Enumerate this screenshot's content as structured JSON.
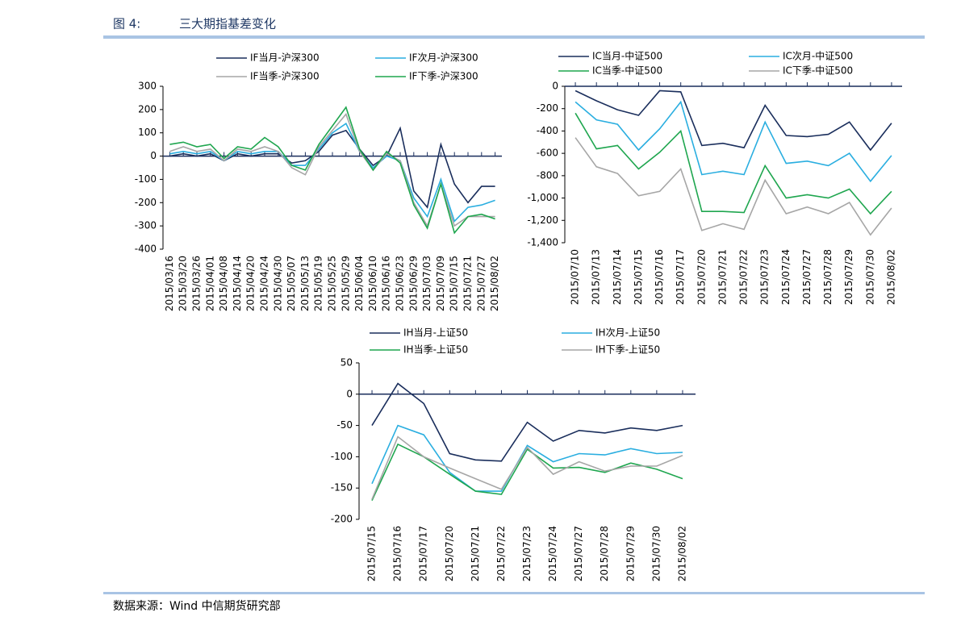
{
  "header": {
    "label": "图 4:",
    "title": "三大期指基差变化"
  },
  "source": "数据来源：Wind 中信期货研究部",
  "chart_data": [
    {
      "type": "line",
      "categories": [
        "2015/03/16",
        "2015/03/20",
        "2015/03/26",
        "2015/04/01",
        "2015/04/08",
        "2015/04/14",
        "2015/04/20",
        "2015/04/24",
        "2015/04/30",
        "2015/05/07",
        "2015/05/13",
        "2015/05/19",
        "2015/05/25",
        "2015/05/29",
        "2015/06/04",
        "2015/06/10",
        "2015/06/16",
        "2015/06/23",
        "2015/06/29",
        "2015/07/03",
        "2015/07/09",
        "2015/07/15",
        "2015/07/21",
        "2015/07/27",
        "2015/08/02"
      ],
      "series": [
        {
          "name": "IF当月-沪深300",
          "color": "#1a2e5c",
          "values": [
            0,
            10,
            0,
            10,
            -20,
            10,
            0,
            10,
            10,
            -30,
            -20,
            20,
            90,
            110,
            30,
            -40,
            0,
            120,
            -150,
            -220,
            50,
            -120,
            -200,
            -130,
            -130
          ]
        },
        {
          "name": "IF次月-沪深300",
          "color": "#2aaee0",
          "values": [
            10,
            20,
            10,
            20,
            -20,
            20,
            10,
            20,
            20,
            -40,
            -40,
            30,
            100,
            140,
            20,
            -50,
            0,
            -20,
            -180,
            -260,
            -100,
            -280,
            -220,
            -210,
            -190
          ]
        },
        {
          "name": "IF当季-沪深300",
          "color": "#a6a6a6",
          "values": [
            20,
            40,
            20,
            30,
            -20,
            30,
            20,
            40,
            20,
            -50,
            -80,
            40,
            110,
            180,
            20,
            -60,
            10,
            -20,
            -200,
            -300,
            -120,
            -300,
            -260,
            -260,
            -260
          ]
        },
        {
          "name": "IF下季-沪深300",
          "color": "#1fa64f",
          "values": [
            50,
            60,
            40,
            50,
            -10,
            40,
            30,
            80,
            40,
            -40,
            -60,
            50,
            130,
            210,
            30,
            -60,
            20,
            -30,
            -210,
            -310,
            -120,
            -330,
            -260,
            -250,
            -270
          ]
        }
      ],
      "ylim": [
        -400,
        300
      ],
      "yticks": [
        -400,
        -300,
        -200,
        -100,
        0,
        100,
        200,
        300
      ]
    },
    {
      "type": "line",
      "categories": [
        "2015/07/10",
        "2015/07/13",
        "2015/07/14",
        "2015/07/15",
        "2015/07/16",
        "2015/07/17",
        "2015/07/20",
        "2015/07/21",
        "2015/07/22",
        "2015/07/23",
        "2015/07/24",
        "2015/07/27",
        "2015/07/28",
        "2015/07/29",
        "2015/07/30",
        "2015/08/02"
      ],
      "series": [
        {
          "name": "IC当月-中证500",
          "color": "#1a2e5c",
          "values": [
            -40,
            -130,
            -210,
            -260,
            -40,
            -50,
            -530,
            -510,
            -550,
            -170,
            -440,
            -450,
            -430,
            -320,
            -570,
            -330
          ]
        },
        {
          "name": "IC次月-中证500",
          "color": "#2aaee0",
          "values": [
            -140,
            -300,
            -340,
            -570,
            -380,
            -140,
            -790,
            -760,
            -790,
            -320,
            -690,
            -670,
            -710,
            -600,
            -850,
            -620
          ]
        },
        {
          "name": "IC当季-中证500",
          "color": "#1fa64f",
          "values": [
            -240,
            -560,
            -530,
            -740,
            -590,
            -400,
            -1120,
            -1120,
            -1130,
            -710,
            -1000,
            -970,
            -1000,
            -920,
            -1140,
            -940
          ]
        },
        {
          "name": "IC下季-中证500",
          "color": "#a6a6a6",
          "values": [
            -460,
            -720,
            -780,
            -980,
            -940,
            -740,
            -1290,
            -1230,
            -1280,
            -840,
            -1140,
            -1080,
            -1140,
            -1040,
            -1330,
            -1090
          ]
        }
      ],
      "ylim": [
        -1400,
        0
      ],
      "yticks": [
        {
          "value": -1400,
          "label": "-1,400"
        },
        {
          "value": -1200,
          "label": "-1,200"
        },
        {
          "value": -1000,
          "label": "-1,000"
        },
        -800,
        -600,
        -400,
        -200,
        0
      ]
    },
    {
      "type": "line",
      "categories": [
        "2015/07/15",
        "2015/07/16",
        "2015/07/17",
        "2015/07/20",
        "2015/07/21",
        "2015/07/22",
        "2015/07/23",
        "2015/07/24",
        "2015/07/27",
        "2015/07/28",
        "2015/07/29",
        "2015/07/30",
        "2015/08/02"
      ],
      "series": [
        {
          "name": "IH当月-上证50",
          "color": "#1a2e5c",
          "values": [
            -50,
            17,
            -15,
            -95,
            -105,
            -107,
            -45,
            -75,
            -58,
            -62,
            -54,
            -58,
            -50
          ]
        },
        {
          "name": "IH次月-上证50",
          "color": "#2aaee0",
          "values": [
            -143,
            -50,
            -65,
            -125,
            -155,
            -155,
            -82,
            -108,
            -95,
            -97,
            -87,
            -95,
            -93
          ]
        },
        {
          "name": "IH当季-上证50",
          "color": "#1fa64f",
          "values": [
            -170,
            -80,
            -100,
            -128,
            -155,
            -160,
            -88,
            -118,
            -117,
            -125,
            -110,
            -120,
            -135
          ]
        },
        {
          "name": "IH下季-上证50",
          "color": "#a6a6a6",
          "values": [
            -168,
            -68,
            -100,
            -118,
            -135,
            -152,
            -85,
            -128,
            -108,
            -123,
            -115,
            -115,
            -98
          ]
        }
      ],
      "ylim": [
        -200,
        50
      ],
      "yticks": [
        -200,
        -150,
        -100,
        -50,
        0,
        50
      ]
    }
  ]
}
